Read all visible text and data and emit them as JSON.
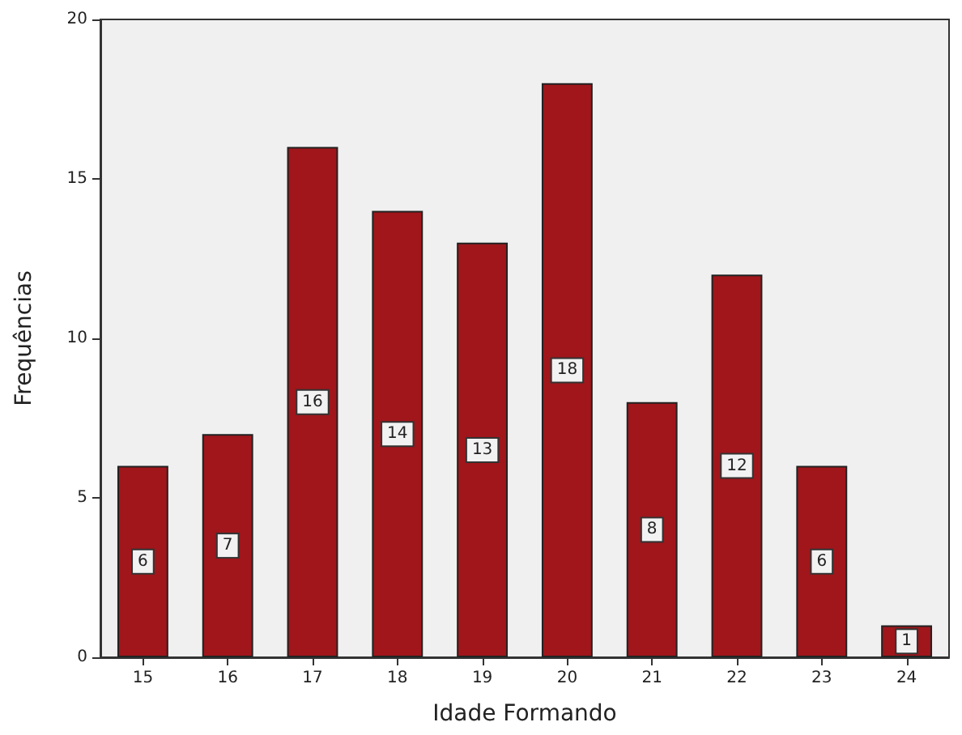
{
  "chart_data": {
    "type": "bar",
    "xlabel": "Idade Formando",
    "ylabel": "Frequências",
    "categories": [
      "15",
      "16",
      "17",
      "18",
      "19",
      "20",
      "21",
      "22",
      "23",
      "24"
    ],
    "values": [
      6,
      7,
      16,
      14,
      13,
      18,
      8,
      12,
      6,
      1
    ],
    "color": "#a0161b",
    "ylim": [
      0,
      20
    ],
    "yticks": [
      0,
      5,
      10,
      15,
      20
    ],
    "grid": false,
    "data_labels": true
  }
}
